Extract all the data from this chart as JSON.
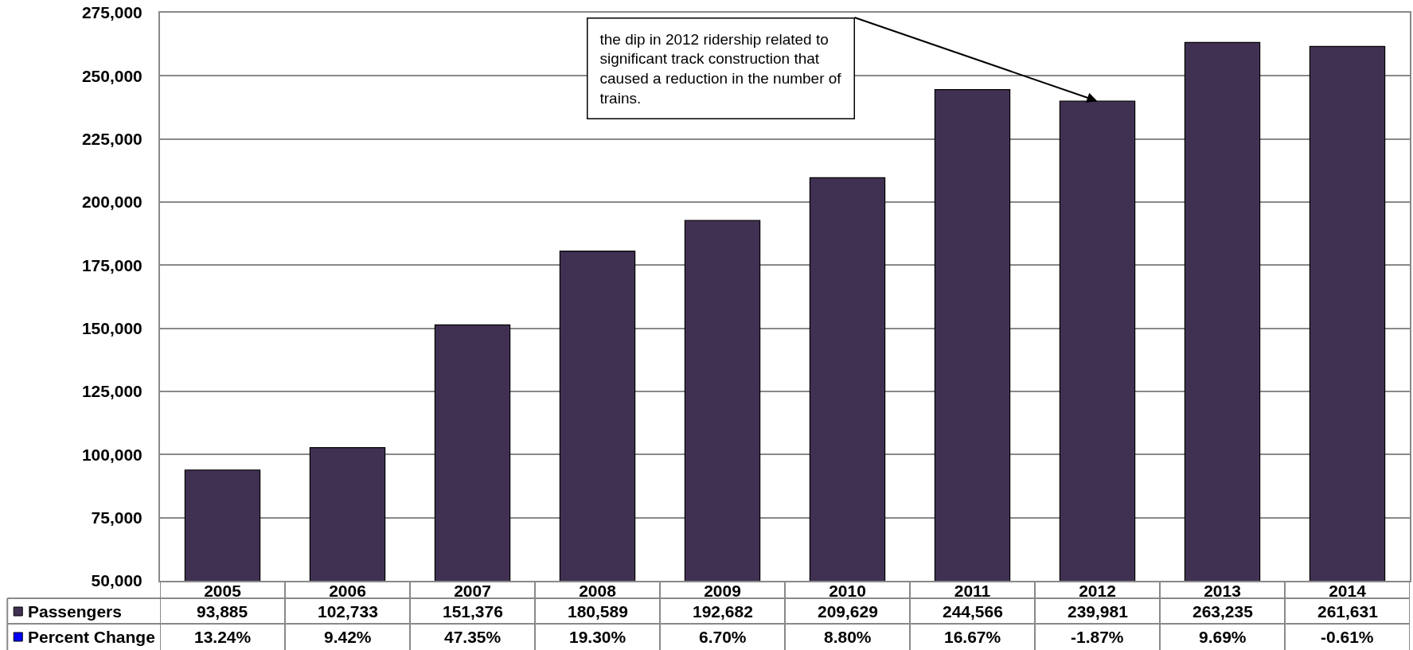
{
  "chart_data": [
    {
      "type": "bar",
      "categories": [
        "2005",
        "2006",
        "2007",
        "2008",
        "2009",
        "2010",
        "2011",
        "2012",
        "2013",
        "2014"
      ],
      "series": [
        {
          "name": "Passengers",
          "color": "#403152",
          "values": [
            93885,
            102733,
            151376,
            180589,
            192682,
            209629,
            244566,
            239981,
            263235,
            261631
          ],
          "value_labels": [
            "93,885",
            "102,733",
            "151,376",
            "180,589",
            "192,682",
            "209,629",
            "244,566",
            "239,981",
            "263,235",
            "261,631"
          ]
        }
      ],
      "ylim": [
        50000,
        275000
      ],
      "yticks": [
        {
          "value": 50000,
          "label": "50,000"
        },
        {
          "value": 75000,
          "label": "75,000"
        },
        {
          "value": 100000,
          "label": "100,000"
        },
        {
          "value": 125000,
          "label": "125,000"
        },
        {
          "value": 150000,
          "label": "150,000"
        },
        {
          "value": 175000,
          "label": "175,000"
        },
        {
          "value": 200000,
          "label": "200,000"
        },
        {
          "value": 225000,
          "label": "225,000"
        },
        {
          "value": 250000,
          "label": "250,000"
        },
        {
          "value": 275000,
          "label": "275,000"
        }
      ],
      "grid": "y",
      "annotations": [
        {
          "text": "the dip in 2012 ridership related to significant track construction that caused a reduction in the number of trains.",
          "x": "2012",
          "y": 239981
        }
      ]
    },
    {
      "type": "other",
      "series": [
        {
          "name": "Percent Change",
          "color": "#0000ff",
          "values": [
            13.24,
            9.42,
            47.35,
            19.3,
            6.7,
            8.8,
            16.67,
            -1.87,
            9.69,
            -0.61
          ],
          "value_labels": [
            "13.24%",
            "9.42%",
            "47.35%",
            "19.30%",
            "6.70%",
            "8.80%",
            "16.67%",
            "-1.87%",
            "9.69%",
            "-0.61%"
          ]
        }
      ]
    }
  ]
}
